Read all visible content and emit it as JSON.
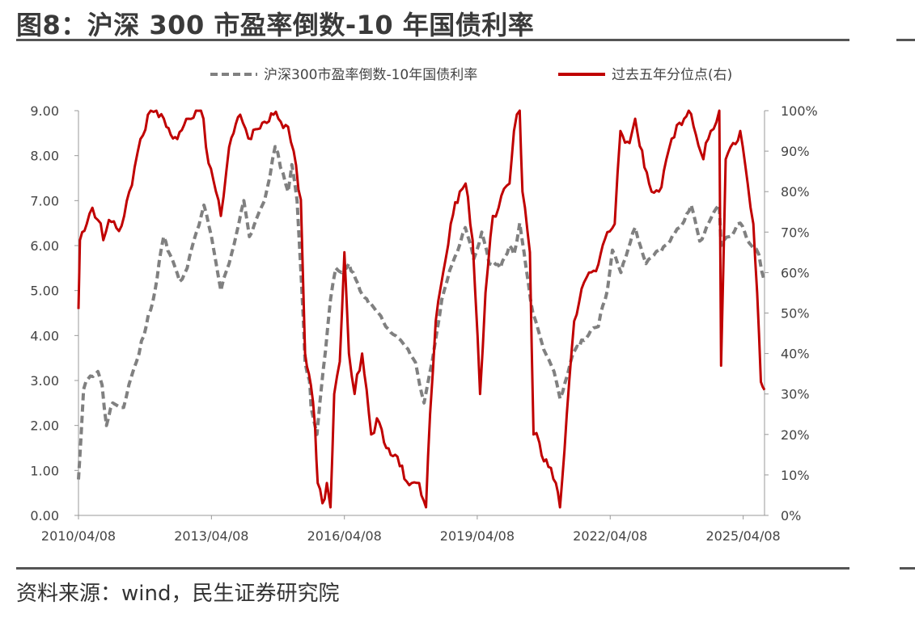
{
  "figure": {
    "title": "图8：沪深 300 市盈率倒数-10 年国债利率",
    "source": "资料来源：wind，民生证券研究院"
  },
  "chart_data": {
    "type": "line",
    "x_label": "",
    "y_label_left": "",
    "y_label_right": "",
    "left_axis": {
      "range": [
        0,
        9
      ],
      "ticks": [
        "0.00",
        "1.00",
        "2.00",
        "3.00",
        "4.00",
        "5.00",
        "6.00",
        "7.00",
        "8.00",
        "9.00"
      ]
    },
    "right_axis": {
      "range": [
        0,
        100
      ],
      "unit": "%",
      "ticks": [
        "0%",
        "10%",
        "20%",
        "30%",
        "40%",
        "50%",
        "60%",
        "70%",
        "80%",
        "90%",
        "100%"
      ]
    },
    "x_range": [
      "2010-04-08",
      "2025-10-01"
    ],
    "x_ticks": [
      "2010/04/08",
      "2013/04/08",
      "2016/04/08",
      "2019/04/08",
      "2022/04/08",
      "2025/04/08"
    ],
    "grid": false,
    "legend_position": "top",
    "series": [
      {
        "name": "沪深300市盈率倒数-10年国债利率",
        "axis": "left",
        "style": "dashed",
        "color": "#808080",
        "points": [
          [
            "2010-04-08",
            0.8
          ],
          [
            "2010-05-20",
            2.8
          ],
          [
            "2010-07-15",
            3.1
          ],
          [
            "2010-09-15",
            3.2
          ],
          [
            "2010-10-20",
            2.9
          ],
          [
            "2010-11-25",
            2.0
          ],
          [
            "2011-01-15",
            2.5
          ],
          [
            "2011-04-15",
            2.4
          ],
          [
            "2011-06-20",
            3.1
          ],
          [
            "2011-09-30",
            4.0
          ],
          [
            "2011-12-30",
            5.0
          ],
          [
            "2012-03-10",
            6.2
          ],
          [
            "2012-05-01",
            5.8
          ],
          [
            "2012-07-20",
            5.2
          ],
          [
            "2012-09-20",
            5.5
          ],
          [
            "2012-12-05",
            6.3
          ],
          [
            "2013-02-05",
            6.9
          ],
          [
            "2013-04-08",
            6.2
          ],
          [
            "2013-06-25",
            5.0
          ],
          [
            "2013-09-01",
            5.6
          ],
          [
            "2013-12-31",
            7.0
          ],
          [
            "2014-02-15",
            6.2
          ],
          [
            "2014-04-15",
            6.6
          ],
          [
            "2014-06-20",
            7.0
          ],
          [
            "2014-09-15",
            8.2
          ],
          [
            "2014-11-20",
            7.6
          ],
          [
            "2014-12-31",
            7.2
          ],
          [
            "2015-01-31",
            7.8
          ],
          [
            "2015-03-15",
            7.0
          ],
          [
            "2015-04-20",
            5.2
          ],
          [
            "2015-05-20",
            3.4
          ],
          [
            "2015-06-25",
            3.0
          ],
          [
            "2015-07-08",
            2.4
          ],
          [
            "2015-08-26",
            1.8
          ],
          [
            "2015-10-15",
            3.2
          ],
          [
            "2015-12-15",
            4.8
          ],
          [
            "2016-01-28",
            5.5
          ],
          [
            "2016-03-15",
            5.4
          ],
          [
            "2016-05-15",
            5.6
          ],
          [
            "2016-08-15",
            5.0
          ],
          [
            "2016-11-15",
            4.7
          ],
          [
            "2017-03-15",
            4.2
          ],
          [
            "2017-07-15",
            3.9
          ],
          [
            "2017-11-15",
            3.4
          ],
          [
            "2018-01-25",
            2.5
          ],
          [
            "2018-03-15",
            3.2
          ],
          [
            "2018-06-20",
            4.8
          ],
          [
            "2018-09-15",
            5.6
          ],
          [
            "2018-12-30",
            6.4
          ],
          [
            "2019-03-10",
            5.7
          ],
          [
            "2019-05-15",
            6.3
          ],
          [
            "2019-07-15",
            5.6
          ],
          [
            "2019-10-15",
            5.5
          ],
          [
            "2019-12-30",
            6.0
          ],
          [
            "2020-02-05",
            5.8
          ],
          [
            "2020-03-23",
            6.5
          ],
          [
            "2020-05-15",
            5.5
          ],
          [
            "2020-07-10",
            4.5
          ],
          [
            "2020-09-15",
            3.9
          ],
          [
            "2020-12-31",
            3.2
          ],
          [
            "2021-02-18",
            2.6
          ],
          [
            "2021-05-15",
            3.4
          ],
          [
            "2021-08-15",
            3.9
          ],
          [
            "2021-12-31",
            4.2
          ],
          [
            "2022-03-15",
            5.0
          ],
          [
            "2022-04-26",
            5.9
          ],
          [
            "2022-07-05",
            5.4
          ],
          [
            "2022-10-31",
            6.4
          ],
          [
            "2023-01-28",
            5.6
          ],
          [
            "2023-05-15",
            5.9
          ],
          [
            "2023-08-15",
            6.1
          ],
          [
            "2023-10-31",
            6.4
          ],
          [
            "2024-02-05",
            6.9
          ],
          [
            "2024-04-15",
            6.1
          ],
          [
            "2024-07-15",
            6.6
          ],
          [
            "2024-09-23",
            6.9
          ],
          [
            "2024-10-08",
            6.0
          ],
          [
            "2024-12-15",
            6.2
          ],
          [
            "2025-03-15",
            6.5
          ],
          [
            "2025-06-15",
            6.0
          ],
          [
            "2025-08-15",
            5.8
          ],
          [
            "2025-10-01",
            5.2
          ]
        ]
      },
      {
        "name": "过去五年分位点(右)",
        "axis": "right",
        "style": "solid",
        "color": "#C00000",
        "points": [
          [
            "2010-04-08",
            51
          ],
          [
            "2010-04-20",
            68
          ],
          [
            "2010-06-15",
            72
          ],
          [
            "2010-08-01",
            76
          ],
          [
            "2010-09-15",
            73
          ],
          [
            "2010-10-30",
            68
          ],
          [
            "2010-12-15",
            73
          ],
          [
            "2011-02-15",
            71
          ],
          [
            "2011-04-20",
            74
          ],
          [
            "2011-06-01",
            80
          ],
          [
            "2011-07-15",
            86
          ],
          [
            "2011-09-01",
            93
          ],
          [
            "2011-11-01",
            99
          ],
          [
            "2012-01-10",
            100
          ],
          [
            "2012-04-01",
            96
          ],
          [
            "2012-07-01",
            93
          ],
          [
            "2012-10-01",
            98
          ],
          [
            "2012-12-01",
            100
          ],
          [
            "2013-02-01",
            98
          ],
          [
            "2013-03-15",
            87
          ],
          [
            "2013-06-25",
            74
          ],
          [
            "2013-09-01",
            91
          ],
          [
            "2013-12-01",
            99
          ],
          [
            "2014-03-01",
            93
          ],
          [
            "2014-06-01",
            97
          ],
          [
            "2014-09-01",
            99
          ],
          [
            "2014-12-31",
            96
          ],
          [
            "2015-02-15",
            90
          ],
          [
            "2015-04-15",
            78
          ],
          [
            "2015-05-20",
            40
          ],
          [
            "2015-06-20",
            35
          ],
          [
            "2015-08-10",
            22
          ],
          [
            "2015-09-01",
            8
          ],
          [
            "2015-10-10",
            3
          ],
          [
            "2015-11-15",
            8
          ],
          [
            "2015-12-15",
            2
          ],
          [
            "2016-01-15",
            30
          ],
          [
            "2016-03-01",
            38
          ],
          [
            "2016-04-08",
            65
          ],
          [
            "2016-05-15",
            40
          ],
          [
            "2016-07-01",
            30
          ],
          [
            "2016-09-01",
            40
          ],
          [
            "2016-11-15",
            20
          ],
          [
            "2017-01-01",
            24
          ],
          [
            "2017-03-01",
            18
          ],
          [
            "2017-06-01",
            15
          ],
          [
            "2017-08-15",
            9
          ],
          [
            "2017-10-15",
            8
          ],
          [
            "2017-12-15",
            8
          ],
          [
            "2018-02-10",
            2
          ],
          [
            "2018-03-15",
            25
          ],
          [
            "2018-05-01",
            48
          ],
          [
            "2018-07-01",
            60
          ],
          [
            "2018-09-01",
            72
          ],
          [
            "2018-11-15",
            80
          ],
          [
            "2019-01-02",
            82
          ],
          [
            "2019-03-01",
            68
          ],
          [
            "2019-05-01",
            30
          ],
          [
            "2019-06-15",
            55
          ],
          [
            "2019-08-15",
            74
          ],
          [
            "2019-10-01",
            76
          ],
          [
            "2019-12-30",
            82
          ],
          [
            "2020-02-05",
            95
          ],
          [
            "2020-03-23",
            100
          ],
          [
            "2020-04-15",
            80
          ],
          [
            "2020-06-15",
            65
          ],
          [
            "2020-07-15",
            20
          ],
          [
            "2020-09-01",
            18
          ],
          [
            "2020-11-15",
            12
          ],
          [
            "2021-01-15",
            8
          ],
          [
            "2021-02-18",
            2
          ],
          [
            "2021-04-15",
            25
          ],
          [
            "2021-06-15",
            48
          ],
          [
            "2021-08-15",
            56
          ],
          [
            "2021-10-15",
            60
          ],
          [
            "2021-12-31",
            62
          ],
          [
            "2022-03-15",
            70
          ],
          [
            "2022-05-15",
            72
          ],
          [
            "2022-07-01",
            95
          ],
          [
            "2022-09-15",
            92
          ],
          [
            "2022-10-31",
            98
          ],
          [
            "2023-01-15",
            86
          ],
          [
            "2023-03-15",
            80
          ],
          [
            "2023-05-15",
            80
          ],
          [
            "2023-07-15",
            88
          ],
          [
            "2023-10-31",
            97
          ],
          [
            "2024-01-15",
            100
          ],
          [
            "2024-03-15",
            94
          ],
          [
            "2024-05-15",
            88
          ],
          [
            "2024-07-15",
            95
          ],
          [
            "2024-09-23",
            100
          ],
          [
            "2024-10-08",
            37
          ],
          [
            "2024-11-15",
            88
          ],
          [
            "2025-01-15",
            92
          ],
          [
            "2025-03-15",
            95
          ],
          [
            "2025-05-15",
            82
          ],
          [
            "2025-07-01",
            72
          ],
          [
            "2025-08-01",
            55
          ],
          [
            "2025-09-01",
            33
          ],
          [
            "2025-10-01",
            31
          ]
        ]
      }
    ]
  }
}
